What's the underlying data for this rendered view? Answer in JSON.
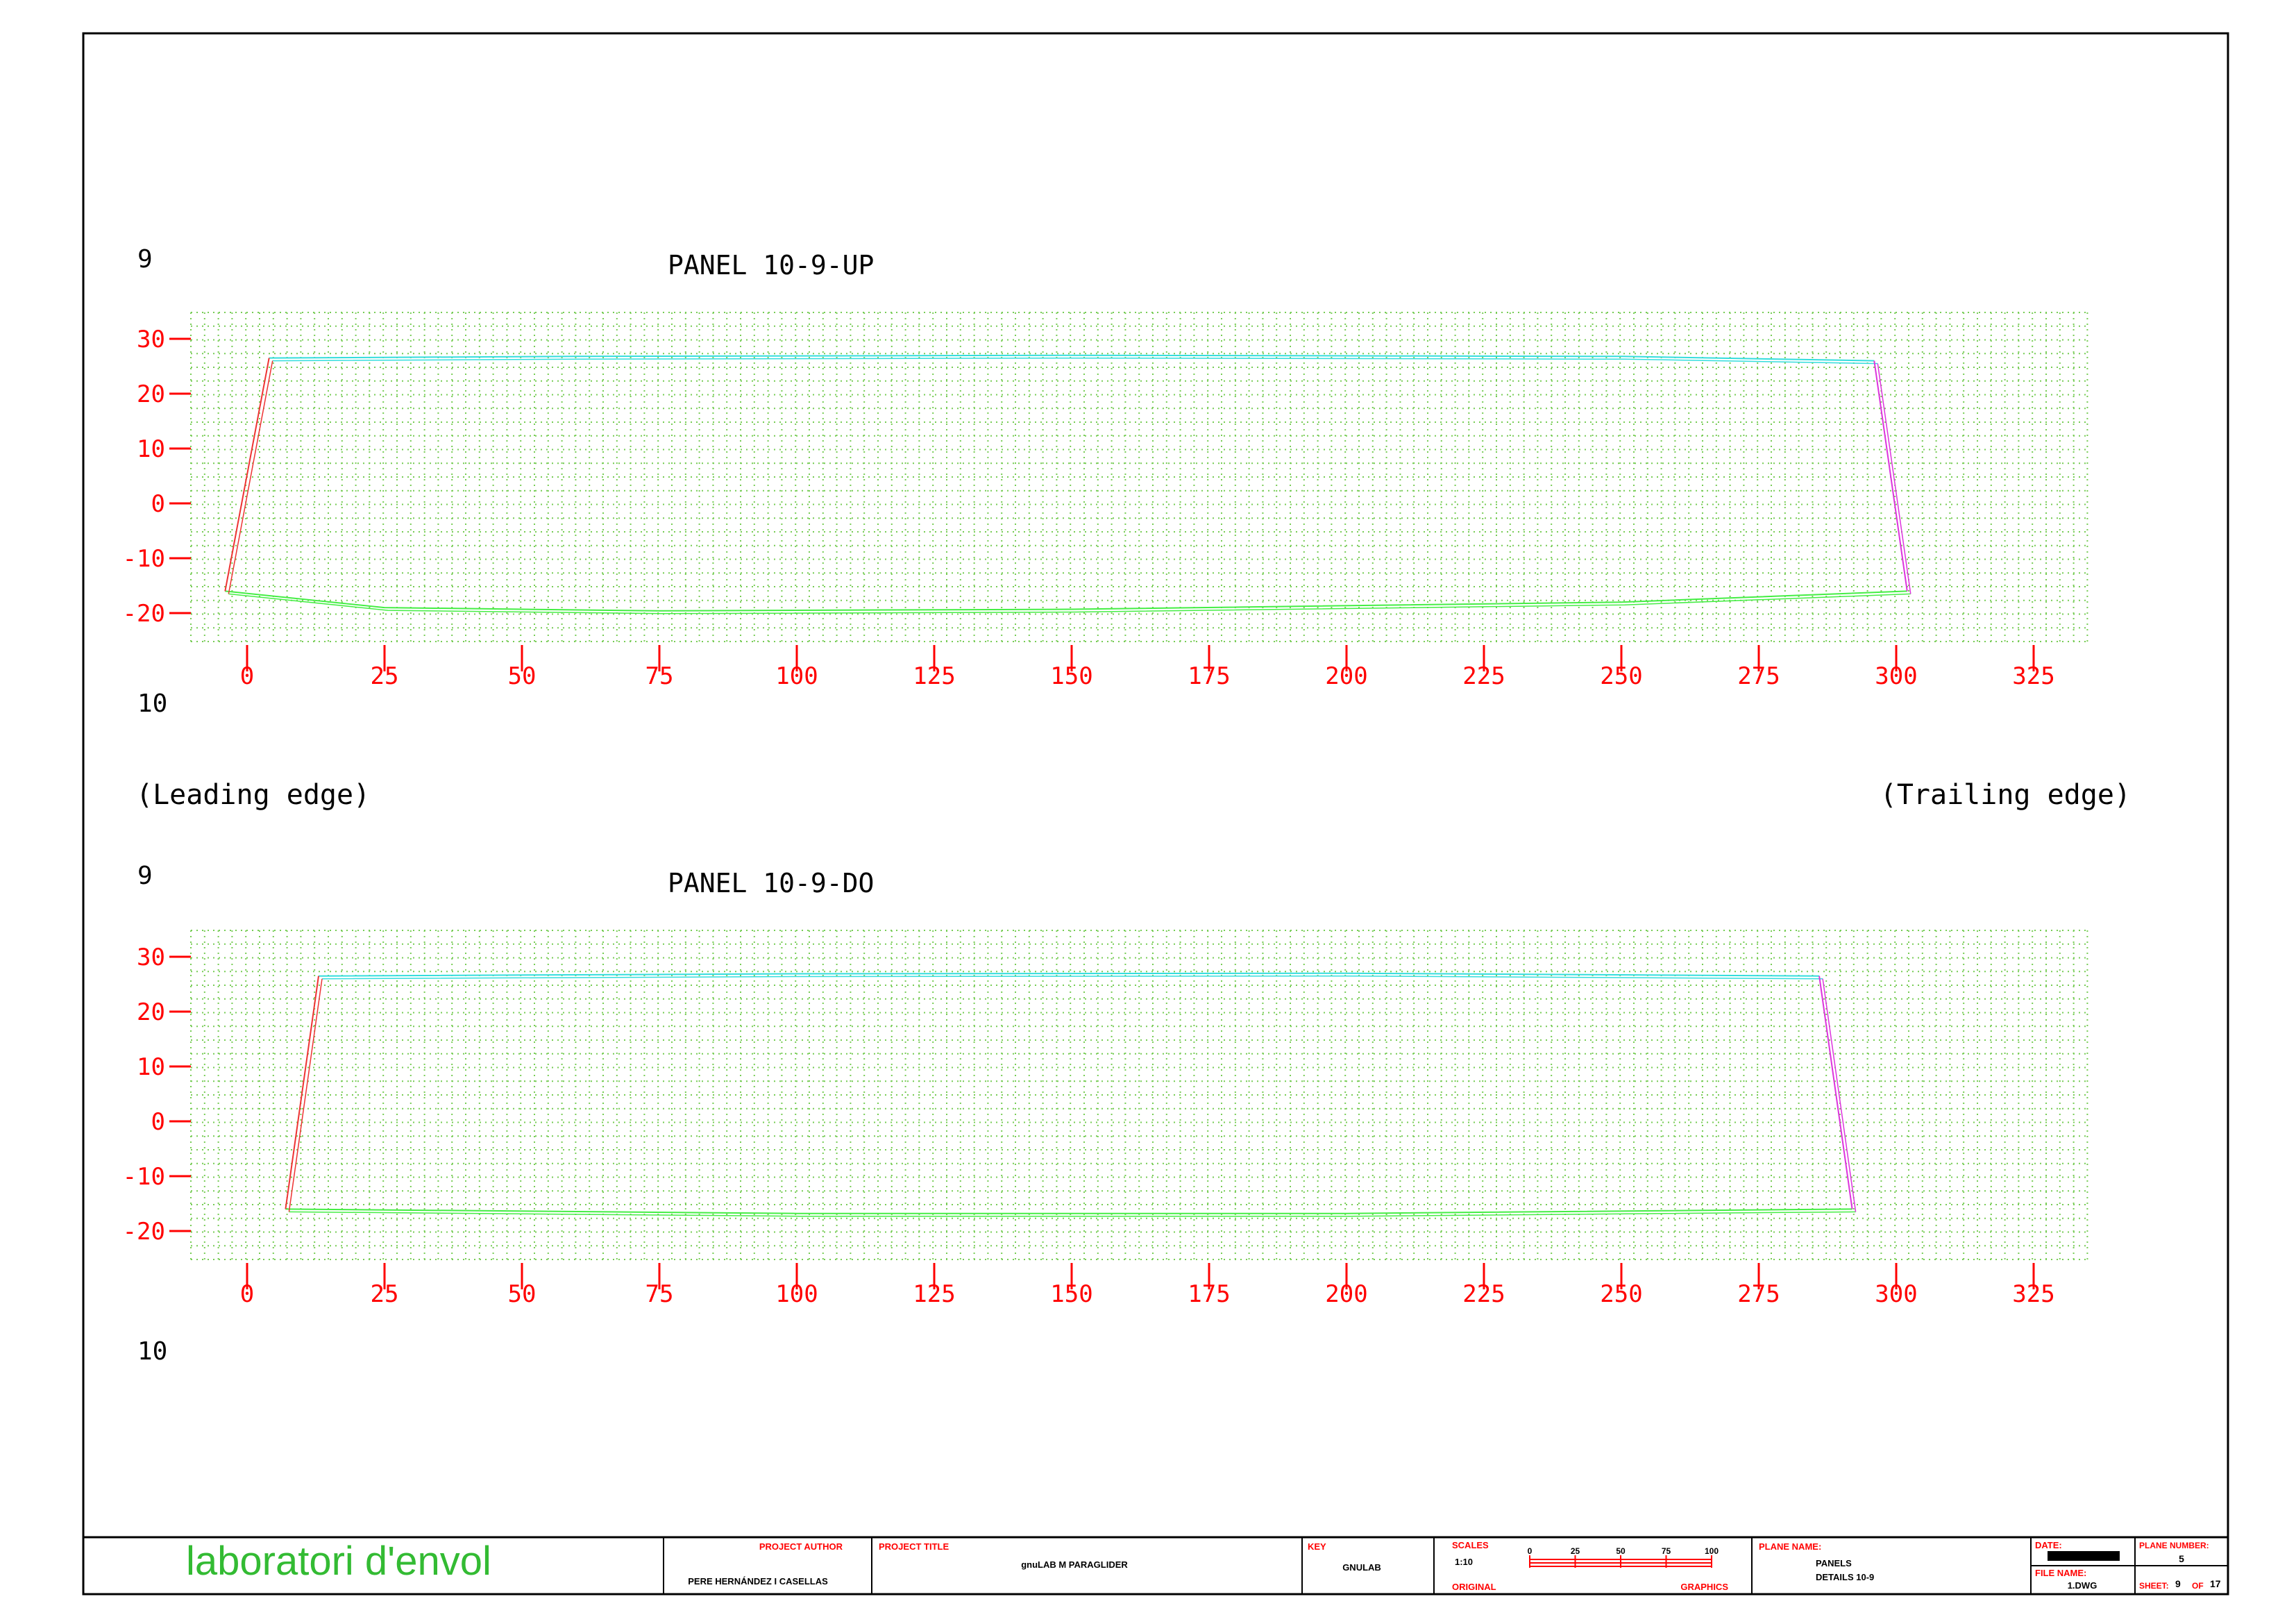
{
  "colors": {
    "frame": "#000000",
    "grid": "#77cc55",
    "axis": "#ff0000",
    "upper_edge": "#33dddd",
    "lower_edge": "#44ee44",
    "leading_edge": "#ee3333",
    "trailing_edge": "#dd33dd",
    "logo": "#33bb33",
    "title_block_label": "#ff0000"
  },
  "labels": {
    "leading_edge": "(Leading edge)",
    "trailing_edge": "(Trailing edge)"
  },
  "panels": [
    {
      "title": "PANEL 10-9-UP",
      "rib_top": "9",
      "rib_bottom": "10",
      "x_ticks": [
        "0",
        "25",
        "50",
        "75",
        "100",
        "125",
        "150",
        "175",
        "200",
        "225",
        "250",
        "275",
        "300",
        "325"
      ],
      "y_ticks": [
        "30",
        "20",
        "10",
        "0",
        "-10",
        "-20"
      ],
      "xlim": [
        -10,
        335
      ],
      "ylim": [
        -25,
        35
      ],
      "outline": {
        "leading_edge": [
          [
            4,
            26.5
          ],
          [
            -4,
            -16
          ]
        ],
        "trailing_edge": [
          [
            296,
            26
          ],
          [
            302,
            -16
          ]
        ],
        "upper_edge": [
          [
            4,
            26.5
          ],
          [
            60,
            26.8
          ],
          [
            150,
            27
          ],
          [
            250,
            26.8
          ],
          [
            296,
            26
          ]
        ],
        "lower_edge": [
          [
            -4,
            -16
          ],
          [
            25,
            -19
          ],
          [
            75,
            -19.6
          ],
          [
            150,
            -19.3
          ],
          [
            250,
            -18
          ],
          [
            302,
            -16
          ]
        ]
      }
    },
    {
      "title": "PANEL 10-9-DO",
      "rib_top": "9",
      "rib_bottom": "10",
      "x_ticks": [
        "0",
        "25",
        "50",
        "75",
        "100",
        "125",
        "150",
        "175",
        "200",
        "225",
        "250",
        "275",
        "300",
        "325"
      ],
      "y_ticks": [
        "30",
        "20",
        "10",
        "0",
        "-10",
        "-20"
      ],
      "xlim": [
        -10,
        335
      ],
      "ylim": [
        -25,
        35
      ],
      "outline": {
        "leading_edge": [
          [
            13,
            26.5
          ],
          [
            7,
            -16
          ]
        ],
        "trailing_edge": [
          [
            286,
            26.5
          ],
          [
            292,
            -16
          ]
        ],
        "upper_edge": [
          [
            13,
            26.5
          ],
          [
            100,
            26.9
          ],
          [
            200,
            27
          ],
          [
            286,
            26.5
          ]
        ],
        "lower_edge": [
          [
            7,
            -16
          ],
          [
            100,
            -16.8
          ],
          [
            200,
            -16.8
          ],
          [
            292,
            -16
          ]
        ]
      }
    }
  ],
  "title_block": {
    "logo": "laboratori d'envol",
    "project_author_label": "PROJECT AUTHOR",
    "project_author": "PERE HERNÁNDEZ I CASELLAS",
    "project_title_label": "PROJECT TITLE",
    "project_title": "gnuLAB M PARAGLIDER",
    "key_label": "KEY",
    "key": "GNULAB",
    "scales_label": "SCALES",
    "scale": "1:10",
    "scale_ticks": [
      "0",
      "25",
      "50",
      "75",
      "100"
    ],
    "original_label": "ORIGINAL",
    "graphics_label": "GRAPHICS",
    "plane_name_label": "PLANE NAME:",
    "plane_name_1": "PANELS",
    "plane_name_2": "DETAILS 10-9",
    "date_label": "DATE:",
    "date": "",
    "plane_number_label": "PLANE NUMBER:",
    "plane_number": "5",
    "file_name_label": "FILE NAME:",
    "file_name": "1.DWG",
    "sheet_label": "SHEET:",
    "sheet": "9",
    "sheet_of_label": "OF",
    "sheet_total": "17"
  }
}
